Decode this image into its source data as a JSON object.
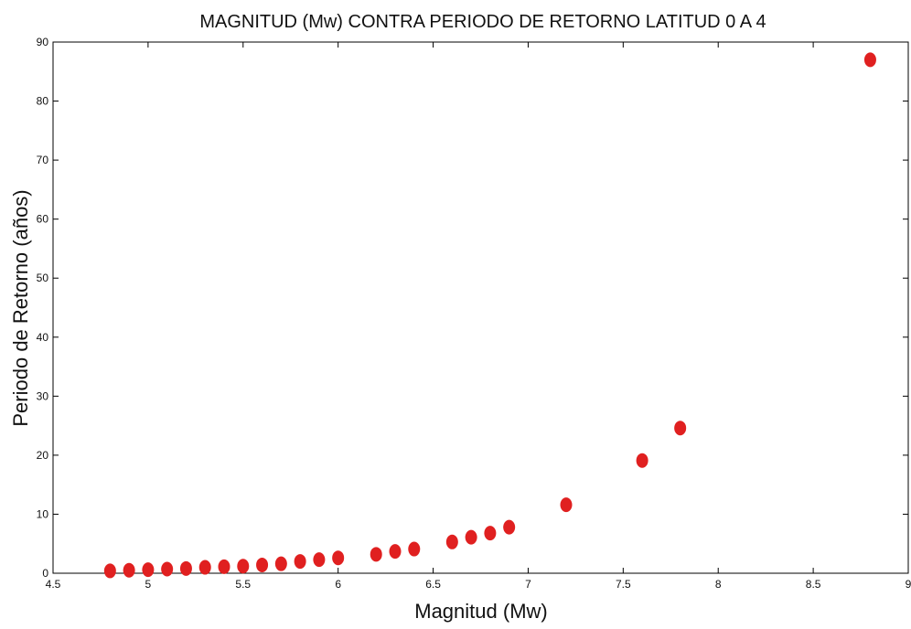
{
  "chart_data": {
    "type": "scatter",
    "title": "MAGNITUD (Mw) CONTRA PERIODO DE RETORNO LATITUD 0 A 4",
    "xlabel": "Magnitud (Mw)",
    "ylabel": "Periodo de Retorno (años)",
    "xlim": [
      4.5,
      9
    ],
    "ylim": [
      0,
      90
    ],
    "xticks": [
      4.5,
      5,
      5.5,
      6,
      6.5,
      7,
      7.5,
      8,
      8.5,
      9
    ],
    "xtick_labels": [
      "4.5",
      "5",
      "5.5",
      "6",
      "6.5",
      "7",
      "7.5",
      "8",
      "8.5",
      "9"
    ],
    "yticks": [
      0,
      10,
      20,
      30,
      40,
      50,
      60,
      70,
      80,
      90
    ],
    "ytick_labels": [
      "0",
      "10",
      "20",
      "30",
      "40",
      "50",
      "60",
      "70",
      "80",
      "90"
    ],
    "grid": false,
    "marker_color": "#e02020",
    "points": [
      {
        "x": 4.8,
        "y": 0.4
      },
      {
        "x": 4.9,
        "y": 0.5
      },
      {
        "x": 5.0,
        "y": 0.6
      },
      {
        "x": 5.1,
        "y": 0.7
      },
      {
        "x": 5.2,
        "y": 0.8
      },
      {
        "x": 5.3,
        "y": 1.0
      },
      {
        "x": 5.4,
        "y": 1.1
      },
      {
        "x": 5.5,
        "y": 1.2
      },
      {
        "x": 5.6,
        "y": 1.4
      },
      {
        "x": 5.7,
        "y": 1.6
      },
      {
        "x": 5.8,
        "y": 2.0
      },
      {
        "x": 5.9,
        "y": 2.3
      },
      {
        "x": 6.0,
        "y": 2.6
      },
      {
        "x": 6.2,
        "y": 3.2
      },
      {
        "x": 6.3,
        "y": 3.7
      },
      {
        "x": 6.4,
        "y": 4.1
      },
      {
        "x": 6.6,
        "y": 5.3
      },
      {
        "x": 6.7,
        "y": 6.1
      },
      {
        "x": 6.8,
        "y": 6.8
      },
      {
        "x": 6.9,
        "y": 7.8
      },
      {
        "x": 7.2,
        "y": 11.6
      },
      {
        "x": 7.6,
        "y": 19.1
      },
      {
        "x": 7.8,
        "y": 24.6
      },
      {
        "x": 8.8,
        "y": 87.0
      }
    ]
  }
}
